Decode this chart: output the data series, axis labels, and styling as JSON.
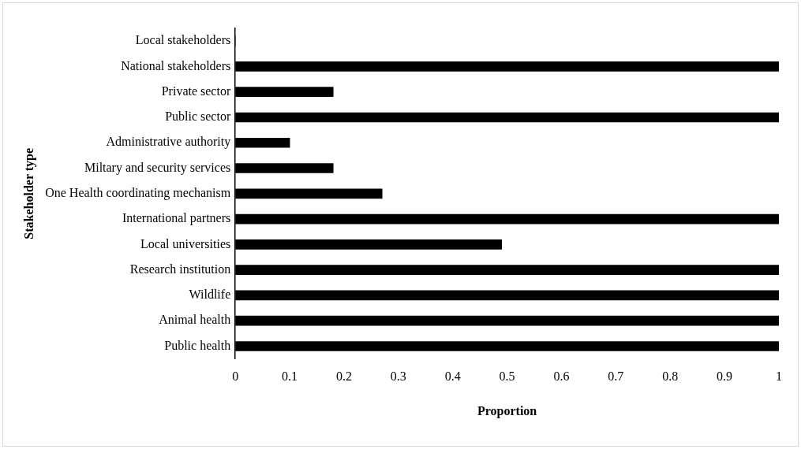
{
  "chart_data": {
    "type": "bar",
    "orientation": "horizontal",
    "categories": [
      "Local stakeholders",
      "National stakeholders",
      "Private sector",
      "Public sector",
      "Administrative authority",
      "Miltary and security services",
      "One Health coordinating mechanism",
      "International partners",
      "Local universities",
      "Research institution",
      "Wildlife",
      "Animal health",
      "Public health"
    ],
    "values": [
      0,
      1,
      0.18,
      1,
      0.1,
      0.18,
      0.27,
      1,
      0.49,
      1,
      1,
      1,
      1
    ],
    "color": "#000000",
    "xlim": [
      0,
      1
    ],
    "xticks": [
      0,
      0.1,
      0.2,
      0.3,
      0.4,
      0.5,
      0.6,
      0.7,
      0.8,
      0.9,
      1
    ],
    "xlabel": "Proportion",
    "ylabel": "Stakeholder type",
    "grid": false,
    "legend": false
  }
}
